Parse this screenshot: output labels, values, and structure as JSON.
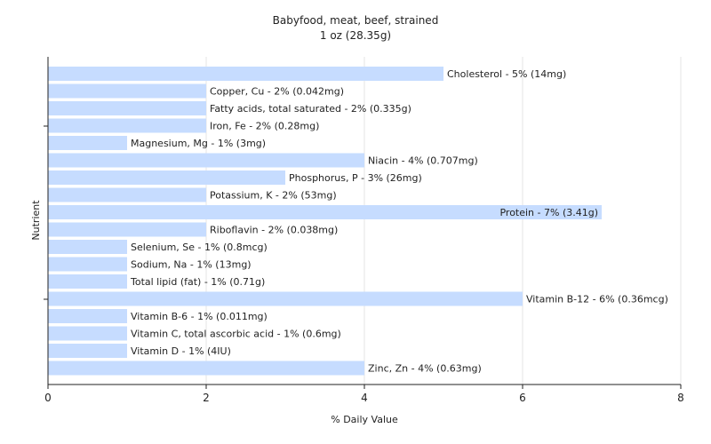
{
  "chart_data": {
    "type": "bar",
    "orientation": "horizontal",
    "title": "Babyfood, meat, beef, strained",
    "subtitle": "1 oz (28.35g)",
    "xlabel": "% Daily Value",
    "ylabel": "Nutrient",
    "xlim": [
      0,
      8
    ],
    "xticks": [
      0,
      2,
      4,
      6,
      8
    ],
    "grid": true,
    "bar_color": "#c6dcff",
    "categories": [
      "Cholesterol",
      "Copper, Cu",
      "Fatty acids, total saturated",
      "Iron, Fe",
      "Magnesium, Mg",
      "Niacin",
      "Phosphorus, P",
      "Potassium, K",
      "Protein",
      "Riboflavin",
      "Selenium, Se",
      "Sodium, Na",
      "Total lipid (fat)",
      "Vitamin B-12",
      "Vitamin B-6",
      "Vitamin C, total ascorbic acid",
      "Vitamin D",
      "Zinc, Zn"
    ],
    "values": [
      5,
      2,
      2,
      2,
      1,
      4,
      3,
      2,
      7,
      2,
      1,
      1,
      1,
      6,
      1,
      1,
      1,
      4
    ],
    "labels": [
      "Cholesterol - 5% (14mg)",
      "Copper, Cu - 2% (0.042mg)",
      "Fatty acids, total saturated - 2% (0.335g)",
      "Iron, Fe - 2% (0.28mg)",
      "Magnesium, Mg - 1% (3mg)",
      "Niacin - 4% (0.707mg)",
      "Phosphorus, P - 3% (26mg)",
      "Potassium, K - 2% (53mg)",
      "Protein - 7% (3.41g)",
      "Riboflavin - 2% (0.038mg)",
      "Selenium, Se - 1% (0.8mcg)",
      "Sodium, Na - 1% (13mg)",
      "Total lipid (fat) - 1% (0.71g)",
      "Vitamin B-12 - 6% (0.36mcg)",
      "Vitamin B-6 - 1% (0.011mg)",
      "Vitamin C, total ascorbic acid - 1% (0.6mg)",
      "Vitamin D - 1% (4IU)",
      "Zinc, Zn - 4% (0.63mg)"
    ]
  }
}
